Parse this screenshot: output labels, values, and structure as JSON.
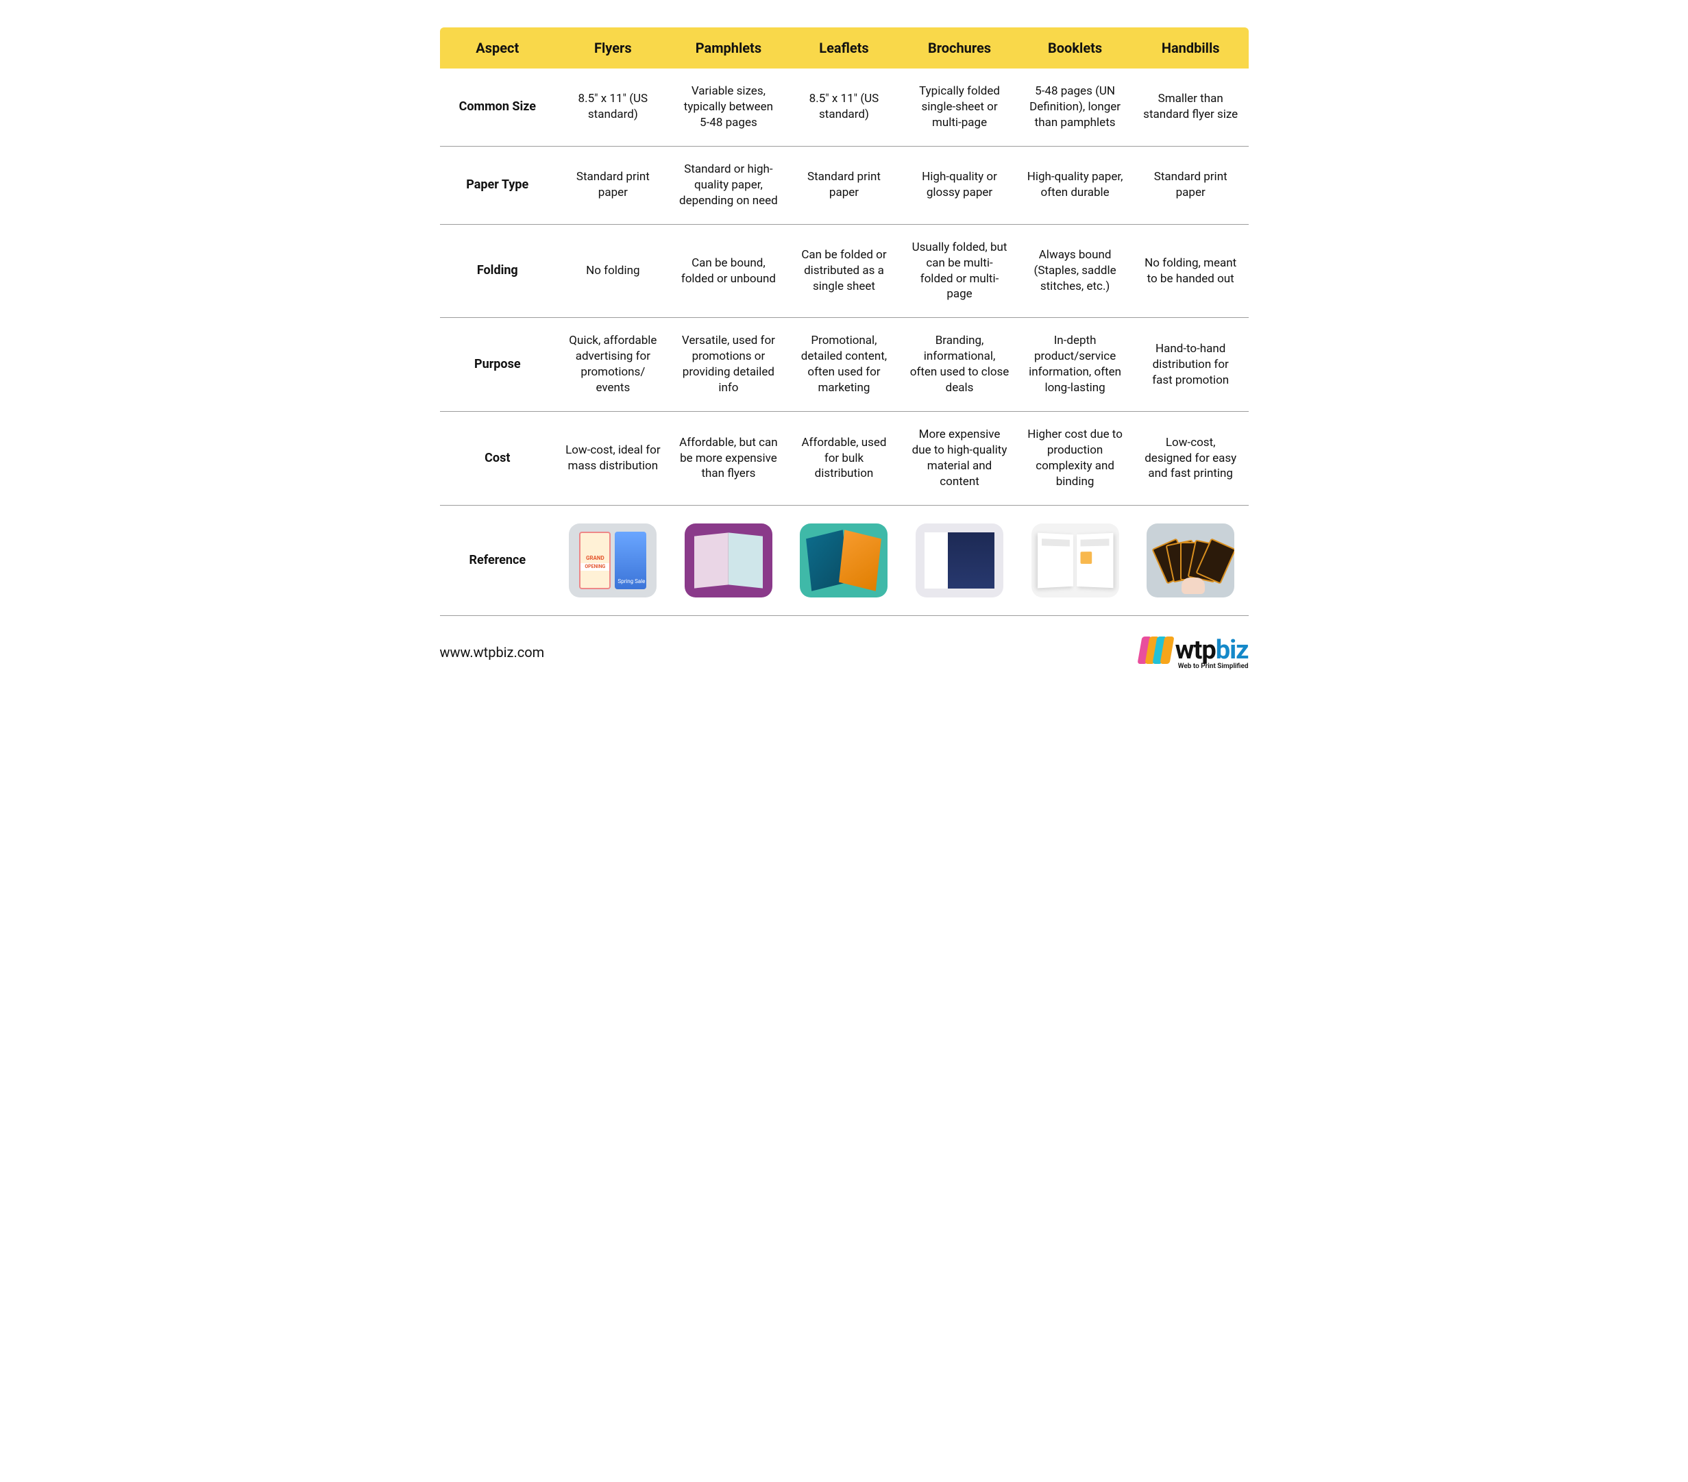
{
  "table": {
    "header_bg": "#f9d84a",
    "divider_color": "#9c9c9c",
    "columns": [
      "Aspect",
      "Flyers",
      "Pamphlets",
      "Leaflets",
      "Brochures",
      "Booklets",
      "Handbills"
    ],
    "rows": [
      {
        "aspect": "Common Size",
        "cells": [
          "8.5\" x 11\" (US standard)",
          "Variable sizes, typically between 5-48 pages",
          "8.5\" x 11\" (US standard)",
          "Typically folded single-sheet or multi-page",
          "5-48 pages (UN Definition), longer than pamphlets",
          "Smaller than standard flyer size"
        ]
      },
      {
        "aspect": "Paper Type",
        "cells": [
          "Standard print paper",
          "Standard or high-quality paper, depending on need",
          "Standard print paper",
          "High-quality or glossy paper",
          "High-quality paper, often durable",
          "Standard print paper"
        ]
      },
      {
        "aspect": "Folding",
        "cells": [
          "No folding",
          "Can be bound, folded or unbound",
          "Can be folded or distributed as a single sheet",
          "Usually folded, but can be multi-folded or multi-page",
          "Always bound (Staples, saddle stitches, etc.)",
          "No folding, meant to be handed out"
        ]
      },
      {
        "aspect": "Purpose",
        "cells": [
          "Quick, affordable advertising for promotions/ events",
          "Versatile, used for promotions or providing detailed info",
          "Promotional, detailed content, often used for marketing",
          "Branding, informational, often used to close deals",
          "In-depth product/service information, often long-lasting",
          "Hand-to-hand distribution for fast promotion"
        ]
      },
      {
        "aspect": "Cost",
        "cells": [
          "Low-cost, ideal for mass distribution",
          "Affordable, but can be more expensive than flyers",
          "Affordable, used for bulk distribution",
          "More expensive due to high-quality material and content",
          "Higher cost due to production complexity and binding",
          "Low-cost, designed for easy and fast printing"
        ]
      }
    ],
    "reference_label": "Reference",
    "reference_thumbs": [
      {
        "name": "flyer-thumb",
        "bg": "#d9dde1"
      },
      {
        "name": "pamphlet-thumb",
        "bg": "#8a3a8a"
      },
      {
        "name": "leaflet-thumb",
        "bg": "#3fb9a8"
      },
      {
        "name": "brochure-thumb",
        "bg": "#e9e8ee"
      },
      {
        "name": "booklet-thumb",
        "bg": "#f3f3f3"
      },
      {
        "name": "handbill-thumb",
        "bg": "#c9d2d8"
      }
    ]
  },
  "footer": {
    "url": "www.wtpbiz.com",
    "logo_text_main": "wtp",
    "logo_text_accent": "biz",
    "tagline": "Web to Print Simplified",
    "brand_accent": "#1589c9",
    "mark_colors": [
      "#e94e9c",
      "#f7a51b",
      "#23c1d6",
      "#f7a51b"
    ]
  }
}
